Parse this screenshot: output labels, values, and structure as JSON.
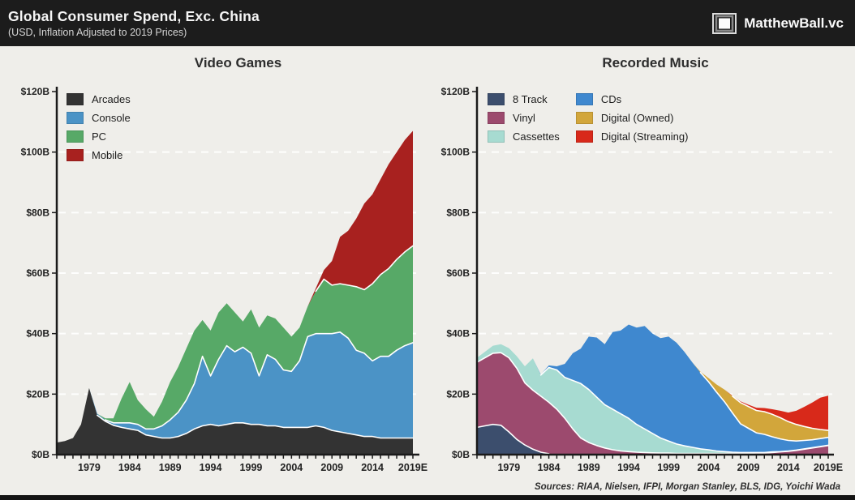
{
  "header": {
    "title": "Global Consumer Spend, Exc. China",
    "subtitle": "(USD, Inflation Adjusted to 2019 Prices)",
    "brand": "MatthewBall.vc"
  },
  "footer": {
    "sources": "Sources: RIAA, Nielsen, IFPI, Morgan Stanley, BLS, IDG, Yoichi Wada"
  },
  "colors": {
    "header_bg": "#1c1c1c",
    "panel_bg": "#efeeea",
    "gridline": "#ffffff",
    "axis": "#1a1a1a"
  },
  "chart_data": [
    {
      "type": "area",
      "stacked": true,
      "title": "Video Games",
      "ylabel": "",
      "xlabel": "",
      "ylim": [
        0,
        120
      ],
      "grid": "dashed-horizontal",
      "legend_position": "top-left",
      "legend_columns": 1,
      "y_tick_labels": [
        "$0B",
        "$20B",
        "$40B",
        "$60B",
        "$80B",
        "$100B",
        "$120B"
      ],
      "x": [
        1975,
        1976,
        1977,
        1978,
        1979,
        1980,
        1981,
        1982,
        1983,
        1984,
        1985,
        1986,
        1987,
        1988,
        1989,
        1990,
        1991,
        1992,
        1993,
        1994,
        1995,
        1996,
        1997,
        1998,
        1999,
        2000,
        2001,
        2002,
        2003,
        2004,
        2005,
        2006,
        2007,
        2008,
        2009,
        2010,
        2011,
        2012,
        2013,
        2014,
        2015,
        2016,
        2017,
        2018,
        2019
      ],
      "x_tick_labels": [
        "1979",
        "1984",
        "1989",
        "1994",
        "1999",
        "2004",
        "2009",
        "2014",
        "2019E"
      ],
      "series": [
        {
          "name": "Arcades",
          "color": "#333333",
          "values": [
            4,
            4.5,
            5.5,
            10,
            22,
            13,
            11,
            9.7,
            9,
            8.5,
            8,
            6.5,
            6,
            5.5,
            5.5,
            6,
            7,
            8.5,
            9.5,
            10,
            9.5,
            10,
            10.5,
            10.5,
            10,
            10,
            9.5,
            9.5,
            9,
            9,
            9,
            9,
            9.5,
            9,
            8,
            7.5,
            7,
            6.5,
            6,
            6,
            5.5,
            5.5,
            5.5,
            5.5,
            5.5
          ]
        },
        {
          "name": "Console",
          "color": "#4b93c6",
          "values": [
            0,
            0,
            0,
            0,
            0,
            0.5,
            0.5,
            0.8,
            1.5,
            2,
            2,
            2,
            2.5,
            4,
            6,
            8,
            11,
            15,
            23,
            16,
            22,
            26,
            23.5,
            25,
            23.5,
            16,
            23.5,
            22,
            19,
            18.5,
            22,
            30,
            30.5,
            31,
            32,
            33,
            31.5,
            28,
            27.5,
            25,
            27,
            27,
            29,
            30.5,
            31.5
          ]
        },
        {
          "name": "PC",
          "color": "#57a967",
          "values": [
            0,
            0,
            0,
            0,
            0,
            0,
            0.5,
            1.5,
            8,
            13.5,
            8,
            6.5,
            4,
            8,
            12.5,
            15,
            17,
            17.5,
            12,
            15,
            15.5,
            14,
            13,
            8.5,
            14.5,
            16,
            13,
            13.5,
            14,
            11.5,
            11,
            10,
            14,
            18,
            16,
            16,
            17.5,
            21,
            21,
            25.5,
            27,
            29,
            30,
            31,
            32
          ]
        },
        {
          "name": "Mobile",
          "color": "#a8211f",
          "values": [
            0,
            0,
            0,
            0,
            0,
            0,
            0,
            0,
            0,
            0,
            0,
            0,
            0,
            0,
            0,
            0,
            0,
            0,
            0,
            0,
            0,
            0,
            0,
            0,
            0,
            0,
            0,
            0,
            0,
            0,
            0,
            0,
            1,
            3,
            8,
            15.5,
            18,
            22.5,
            28.5,
            29.5,
            31.5,
            34.5,
            35.5,
            37,
            38
          ]
        }
      ]
    },
    {
      "type": "area",
      "stacked": true,
      "title": "Recorded Music",
      "ylabel": "",
      "xlabel": "",
      "ylim": [
        0,
        120
      ],
      "grid": "dashed-horizontal",
      "legend_position": "top-left",
      "legend_columns": 2,
      "y_tick_labels": [
        "$0B",
        "$20B",
        "$40B",
        "$60B",
        "$80B",
        "$100B",
        "$120B"
      ],
      "x": [
        1975,
        1976,
        1977,
        1978,
        1979,
        1980,
        1981,
        1982,
        1983,
        1984,
        1985,
        1986,
        1987,
        1988,
        1989,
        1990,
        1991,
        1992,
        1993,
        1994,
        1995,
        1996,
        1997,
        1998,
        1999,
        2000,
        2001,
        2002,
        2003,
        2004,
        2005,
        2006,
        2007,
        2008,
        2009,
        2010,
        2011,
        2012,
        2013,
        2014,
        2015,
        2016,
        2017,
        2018,
        2019
      ],
      "x_tick_labels": [
        "1979",
        "1984",
        "1989",
        "1994",
        "1999",
        "2004",
        "2009",
        "2014",
        "2019E"
      ],
      "series": [
        {
          "name": "8 Track",
          "color": "#3c4e6d",
          "values": [
            9,
            9.5,
            10,
            9.7,
            7.5,
            5,
            3.2,
            1.8,
            0.8,
            0.3,
            0,
            0,
            0,
            0,
            0,
            0,
            0,
            0,
            0,
            0,
            0,
            0,
            0,
            0,
            0,
            0,
            0,
            0,
            0,
            0,
            0,
            0,
            0,
            0,
            0,
            0,
            0,
            0,
            0,
            0,
            0,
            0,
            0,
            0,
            0
          ]
        },
        {
          "name": "Vinyl",
          "color": "#9c4a6e",
          "values": [
            21.5,
            22.5,
            23.5,
            24,
            24.5,
            23.5,
            20.5,
            19.5,
            18.5,
            17,
            15,
            12,
            8.5,
            5.5,
            4,
            3,
            2.2,
            1.6,
            1.2,
            1,
            0.8,
            0.7,
            0.6,
            0.5,
            0.5,
            0.4,
            0.4,
            0.4,
            0.4,
            0.4,
            0.4,
            0.4,
            0.4,
            0.4,
            0.4,
            0.5,
            0.5,
            0.7,
            0.9,
            1.1,
            1.4,
            1.8,
            2.2,
            2.6,
            3
          ]
        },
        {
          "name": "Cassettes",
          "color": "#a7dbd1",
          "values": [
            1.5,
            2,
            2.5,
            2.8,
            3.2,
            4,
            5.5,
            10.5,
            7,
            11.5,
            13,
            13.5,
            16,
            18,
            17.5,
            16,
            14.3,
            13.4,
            12.3,
            11,
            9.2,
            7.8,
            6.4,
            5,
            4,
            3.1,
            2.5,
            2,
            1.5,
            1.2,
            0.8,
            0.6,
            0.4,
            0.3,
            0.3,
            0.2,
            0.2,
            0.2,
            0.1,
            0.1,
            0.1,
            0.1,
            0.1,
            0.1,
            0.1
          ]
        },
        {
          "name": "CDs",
          "color": "#3f88cf",
          "values": [
            0,
            0,
            0,
            0,
            0,
            0,
            0,
            0,
            0.2,
            0.7,
            1.2,
            4.5,
            9,
            11.5,
            17.5,
            19.7,
            20,
            25.5,
            27.5,
            31,
            32,
            34,
            33,
            33,
            34.5,
            33.5,
            31,
            28,
            25.2,
            22.5,
            19.5,
            16.5,
            13,
            9.5,
            8,
            6.5,
            6,
            5,
            4.2,
            3.5,
            3,
            2.8,
            2.6,
            2.6,
            2.6
          ]
        },
        {
          "name": "Digital (Owned)",
          "color": "#d2a63b",
          "values": [
            0,
            0,
            0,
            0,
            0,
            0,
            0,
            0,
            0,
            0,
            0,
            0,
            0,
            0,
            0,
            0,
            0,
            0,
            0,
            0,
            0,
            0,
            0,
            0,
            0,
            0,
            0,
            0,
            0.3,
            1.2,
            2.5,
            4,
            5.5,
            7,
            7.2,
            7.4,
            7.5,
            7.4,
            7,
            6.2,
            5.5,
            4.6,
            3.8,
            3,
            2.3
          ]
        },
        {
          "name": "Digital (Streaming)",
          "color": "#d8291a",
          "values": [
            0,
            0,
            0,
            0,
            0,
            0,
            0,
            0,
            0,
            0,
            0,
            0,
            0,
            0,
            0,
            0,
            0,
            0,
            0,
            0,
            0,
            0,
            0,
            0,
            0,
            0,
            0,
            0,
            0,
            0,
            0,
            0,
            0.2,
            0.4,
            0.6,
            0.9,
            1.2,
            1.7,
            2.3,
            3,
            4.5,
            6.5,
            8.5,
            10.5,
            11.5
          ]
        }
      ]
    }
  ]
}
